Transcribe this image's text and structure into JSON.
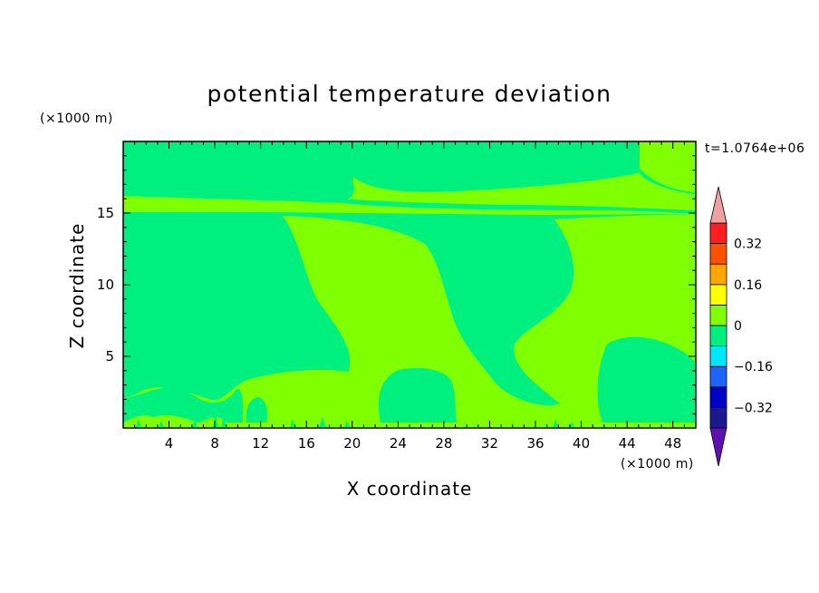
{
  "chart_data": {
    "type": "heatmap",
    "title": "potential temperature deviation",
    "xlabel": "X coordinate",
    "ylabel": "Z coordinate",
    "x_unit": "(×1000 m)",
    "y_unit": "(×1000 m)",
    "time_label": "t=1.0764e+06",
    "xlim": [
      0,
      50
    ],
    "ylim": [
      0,
      20
    ],
    "x_ticks": [
      4,
      8,
      12,
      16,
      20,
      24,
      28,
      32,
      36,
      40,
      44,
      48
    ],
    "y_ticks": [
      5,
      10,
      15
    ],
    "x_tick_labels": [
      "4",
      "8",
      "12",
      "16",
      "20",
      "24",
      "28",
      "32",
      "36",
      "40",
      "44",
      "48"
    ],
    "y_tick_labels": [
      "5",
      "10",
      "15"
    ],
    "colorbar": {
      "levels": [
        -0.4,
        -0.32,
        -0.24,
        -0.16,
        -0.08,
        0,
        0.08,
        0.16,
        0.24,
        0.32,
        0.4
      ],
      "labels": [
        "0.32",
        "0.16",
        "0",
        "−0.16",
        "−0.32"
      ],
      "label_values": [
        0.32,
        0.16,
        0,
        -0.16,
        -0.32
      ],
      "colors": [
        "#5a10a0",
        "#1a1a8c",
        "#0000c8",
        "#1e64ff",
        "#00e6ff",
        "#00f080",
        "#80ff00",
        "#ffff00",
        "#ffa500",
        "#ff5000",
        "#ff1e1e",
        "#f0a0a0"
      ],
      "under_color": "#6010b0",
      "over_color": "#f0a0a0"
    },
    "regions": {
      "background_value_range": [
        -0.08,
        0
      ],
      "positive_value_range": [
        0,
        0.08
      ]
    }
  }
}
